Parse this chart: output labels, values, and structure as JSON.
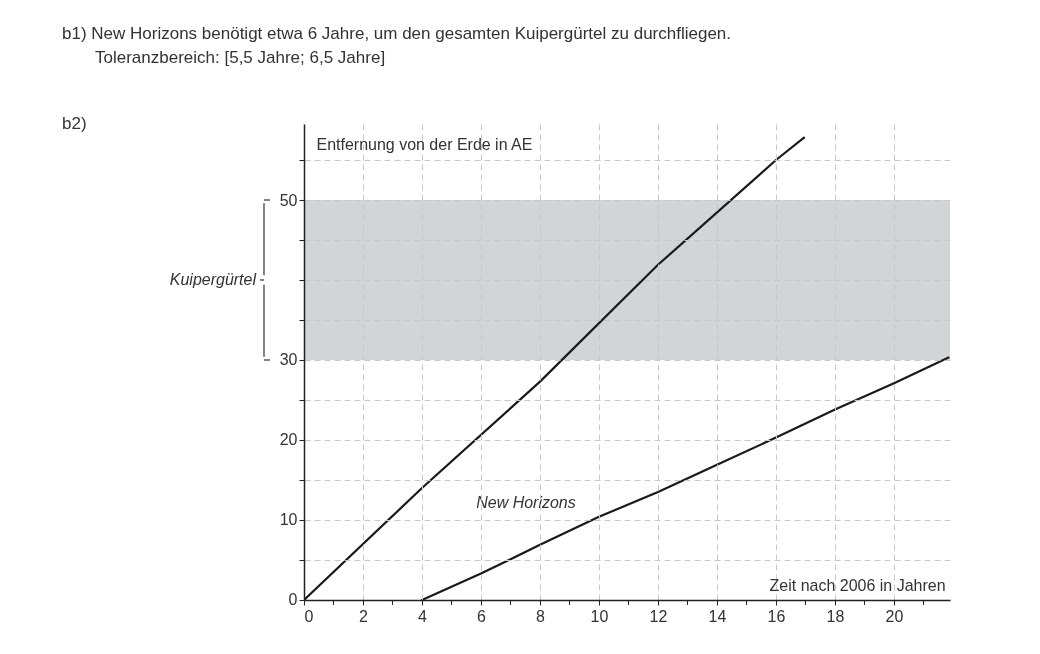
{
  "chart_data": {
    "type": "line",
    "annotations": [
      "b1) New Horizons benötigt etwa 6 Jahre, um den gesamten Kuipergürtel zu durchfliegen.",
      "Toleranzbereich: [5,5 Jahre; 6,5 Jahre]",
      "b2)"
    ],
    "xlabel": "Zeit nach 2006 in Jahren",
    "ylabel": "Entfernung von der Erde in AE",
    "xlim": [
      0,
      21.9
    ],
    "ylim": [
      0,
      59.5
    ],
    "xticks": [
      0,
      {
        "value": 1,
        "label": null
      },
      2,
      {
        "value": 3,
        "label": null
      },
      4,
      {
        "value": 5,
        "label": null
      },
      6,
      {
        "value": 7,
        "label": null
      },
      8,
      {
        "value": 9,
        "label": null
      },
      10,
      {
        "value": 11,
        "label": null
      },
      12,
      {
        "value": 13,
        "label": null
      },
      14,
      {
        "value": 15,
        "label": null
      },
      16,
      {
        "value": 17,
        "label": null
      },
      18,
      {
        "value": 19,
        "label": null
      },
      20,
      {
        "value": 21,
        "label": null
      }
    ],
    "yticks": [
      0,
      {
        "value": 5,
        "label": null
      },
      10,
      {
        "value": 15,
        "label": null
      },
      20,
      {
        "value": 25,
        "label": null
      },
      30,
      {
        "value": 35,
        "label": null
      },
      {
        "value": 40,
        "label": null
      },
      {
        "value": 45,
        "label": null
      },
      50,
      {
        "value": 55,
        "label": null
      }
    ],
    "grid": true,
    "bands": [
      {
        "axis": "y",
        "from": 30,
        "to": 50,
        "label": "Kuipergürtel",
        "color": "#d3d4d6"
      }
    ],
    "series": [
      {
        "name": "New Horizons",
        "color": "#1a1a1a",
        "x": [
          0,
          4,
          8,
          12,
          16,
          16.95
        ],
        "values": [
          0,
          14,
          27.3,
          41.9,
          55,
          57.8
        ]
      },
      {
        "color": "#1a1a1a",
        "x": [
          4,
          6,
          8,
          10,
          12,
          14,
          16,
          18,
          20,
          21.85
        ],
        "values": [
          0,
          3.3,
          6.9,
          10.4,
          13.5,
          16.9,
          20.3,
          23.8,
          27.1,
          30.3
        ]
      }
    ]
  }
}
